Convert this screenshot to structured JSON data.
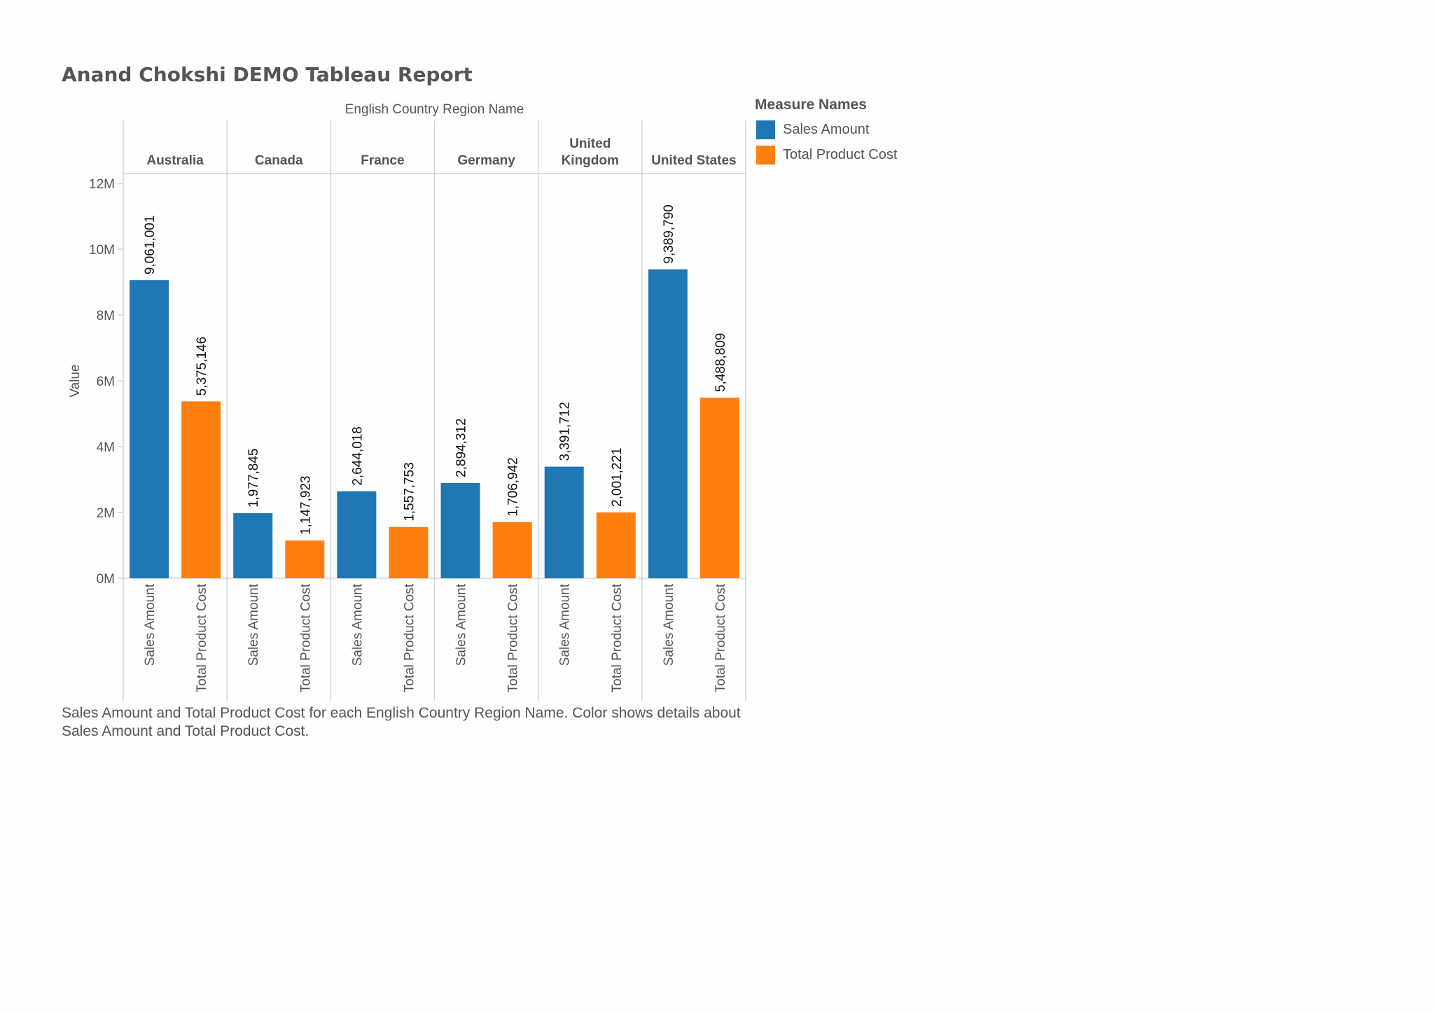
{
  "report": {
    "title": "Anand Chokshi DEMO Tableau Report",
    "caption": "Sales Amount and Total Product Cost for each English Country Region Name.  Color shows details about Sales Amount and Total Product Cost."
  },
  "legend": {
    "title": "Measure Names",
    "items": [
      {
        "label": "Sales Amount",
        "color": "#1f77b4"
      },
      {
        "label": "Total Product Cost",
        "color": "#ff7f0e"
      }
    ]
  },
  "chart_data": {
    "type": "bar",
    "column_header": "English Country Region Name",
    "ylabel": "Value",
    "ylim": [
      0,
      12000000
    ],
    "yticks": [
      0,
      2000000,
      4000000,
      6000000,
      8000000,
      10000000,
      12000000
    ],
    "ytick_labels": [
      "0M",
      "2M",
      "4M",
      "6M",
      "8M",
      "10M",
      "12M"
    ],
    "categories": [
      "Australia",
      "Canada",
      "France",
      "Germany",
      "United Kingdom",
      "United States"
    ],
    "category_labels": [
      [
        "Australia"
      ],
      [
        "Canada"
      ],
      [
        "France"
      ],
      [
        "Germany"
      ],
      [
        "United",
        "Kingdom"
      ],
      [
        "United States"
      ]
    ],
    "series": [
      {
        "name": "Sales Amount",
        "color": "#1f77b4",
        "values": [
          9061001,
          1977845,
          2644018,
          2894312,
          3391712,
          9389790
        ],
        "labels": [
          "9,061,001",
          "1,977,845",
          "2,644,018",
          "2,894,312",
          "3,391,712",
          "9,389,790"
        ]
      },
      {
        "name": "Total Product Cost",
        "color": "#ff7f0e",
        "values": [
          5375146,
          1147923,
          1557753,
          1706942,
          2001221,
          5488809
        ],
        "labels": [
          "5,375,146",
          "1,147,923",
          "1,557,753",
          "1,706,942",
          "2,001,221",
          "5,488,809"
        ]
      }
    ],
    "grid": false
  }
}
